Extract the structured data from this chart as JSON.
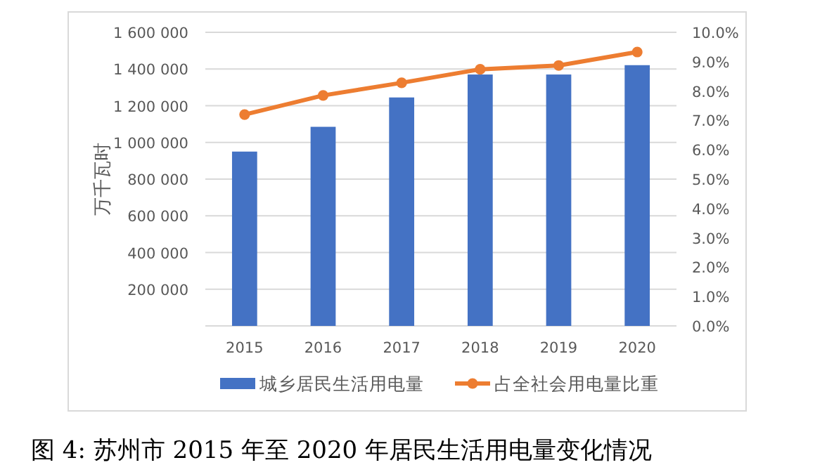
{
  "chart_data": {
    "type": "bar",
    "categories": [
      "2015",
      "2016",
      "2017",
      "2018",
      "2019",
      "2020"
    ],
    "series": [
      {
        "name": "城乡居民生活用电量",
        "color": "#4472c4",
        "values": [
          950000,
          1085000,
          1245000,
          1370000,
          1370000,
          1421000
        ]
      },
      {
        "name": "占全社会用电量比重",
        "type": "line",
        "axis": "y2",
        "color": "#ed7d31",
        "marker": "circle",
        "values": [
          7.2,
          7.85,
          8.28,
          8.74,
          8.87,
          9.33
        ]
      }
    ],
    "ylabel": "万千瓦时",
    "ylim": [
      0,
      1600000
    ],
    "yticks": [
      {
        "value": 0,
        "label": null
      },
      {
        "value": 200000,
        "label": "200 000"
      },
      {
        "value": 400000,
        "label": "400 000"
      },
      {
        "value": 600000,
        "label": "600 000"
      },
      {
        "value": 800000,
        "label": "800 000"
      },
      {
        "value": 1000000,
        "label": "1 000 000"
      },
      {
        "value": 1200000,
        "label": "1 200 000"
      },
      {
        "value": 1400000,
        "label": "1 400 000"
      },
      {
        "value": 1600000,
        "label": "1 600 000"
      }
    ],
    "y2lim": [
      0,
      10
    ],
    "y2ticks": [
      {
        "value": 0,
        "label": "0.0%"
      },
      {
        "value": 1,
        "label": "1.0%"
      },
      {
        "value": 2,
        "label": "2.0%"
      },
      {
        "value": 3,
        "label": "3.0%"
      },
      {
        "value": 4,
        "label": "4.0%"
      },
      {
        "value": 5,
        "label": "5.0%"
      },
      {
        "value": 6,
        "label": "6.0%"
      },
      {
        "value": 7,
        "label": "7.0%"
      },
      {
        "value": 8,
        "label": "8.0%"
      },
      {
        "value": 9,
        "label": "9.0%"
      },
      {
        "value": 10,
        "label": "10.0%"
      }
    ],
    "grid": "y",
    "legend": "bottom",
    "annotations": [
      "图 4: 苏州市 2015 年至 2020 年居民生活用电量变化情况"
    ]
  }
}
